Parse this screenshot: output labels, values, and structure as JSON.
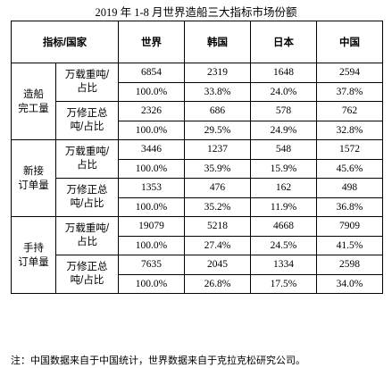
{
  "title": "2019 年 1-8 月世界造船三大指标市场份额",
  "header": {
    "corner": "指标/国家",
    "columns": [
      "世界",
      "韩国",
      "日本",
      "中国"
    ]
  },
  "groups": [
    {
      "label_line1": "造船",
      "label_line2": "完工量",
      "metrics": [
        {
          "label_line1": "万载重吨/",
          "label_line2": "占比",
          "values": [
            "6854",
            "2319",
            "1648",
            "2594"
          ],
          "shares": [
            "100.0%",
            "33.8%",
            "24.0%",
            "37.8%"
          ]
        },
        {
          "label_line1": "万修正总",
          "label_line2": "吨/占比",
          "values": [
            "2326",
            "686",
            "578",
            "762"
          ],
          "shares": [
            "100.0%",
            "29.5%",
            "24.9%",
            "32.8%"
          ]
        }
      ]
    },
    {
      "label_line1": "新接",
      "label_line2": "订单量",
      "metrics": [
        {
          "label_line1": "万载重吨/",
          "label_line2": "占比",
          "values": [
            "3446",
            "1237",
            "548",
            "1572"
          ],
          "shares": [
            "100.0%",
            "35.9%",
            "15.9%",
            "45.6%"
          ]
        },
        {
          "label_line1": "万修正总",
          "label_line2": "吨/占比",
          "values": [
            "1353",
            "476",
            "162",
            "498"
          ],
          "shares": [
            "100.0%",
            "35.2%",
            "11.9%",
            "36.8%"
          ]
        }
      ]
    },
    {
      "label_line1": "手持",
      "label_line2": "订单量",
      "metrics": [
        {
          "label_line1": "万载重吨/",
          "label_line2": "占比",
          "values": [
            "19079",
            "5218",
            "4668",
            "7909"
          ],
          "shares": [
            "100.0%",
            "27.4%",
            "24.5%",
            "41.5%"
          ]
        },
        {
          "label_line1": "万修正总",
          "label_line2": "吨/占比",
          "values": [
            "7635",
            "2045",
            "1334",
            "2598"
          ],
          "shares": [
            "100.0%",
            "26.8%",
            "17.5%",
            "34.0%"
          ]
        }
      ]
    }
  ],
  "note": "注：中国数据来自于中国统计，世界数据来自于克拉克松研究公司。"
}
